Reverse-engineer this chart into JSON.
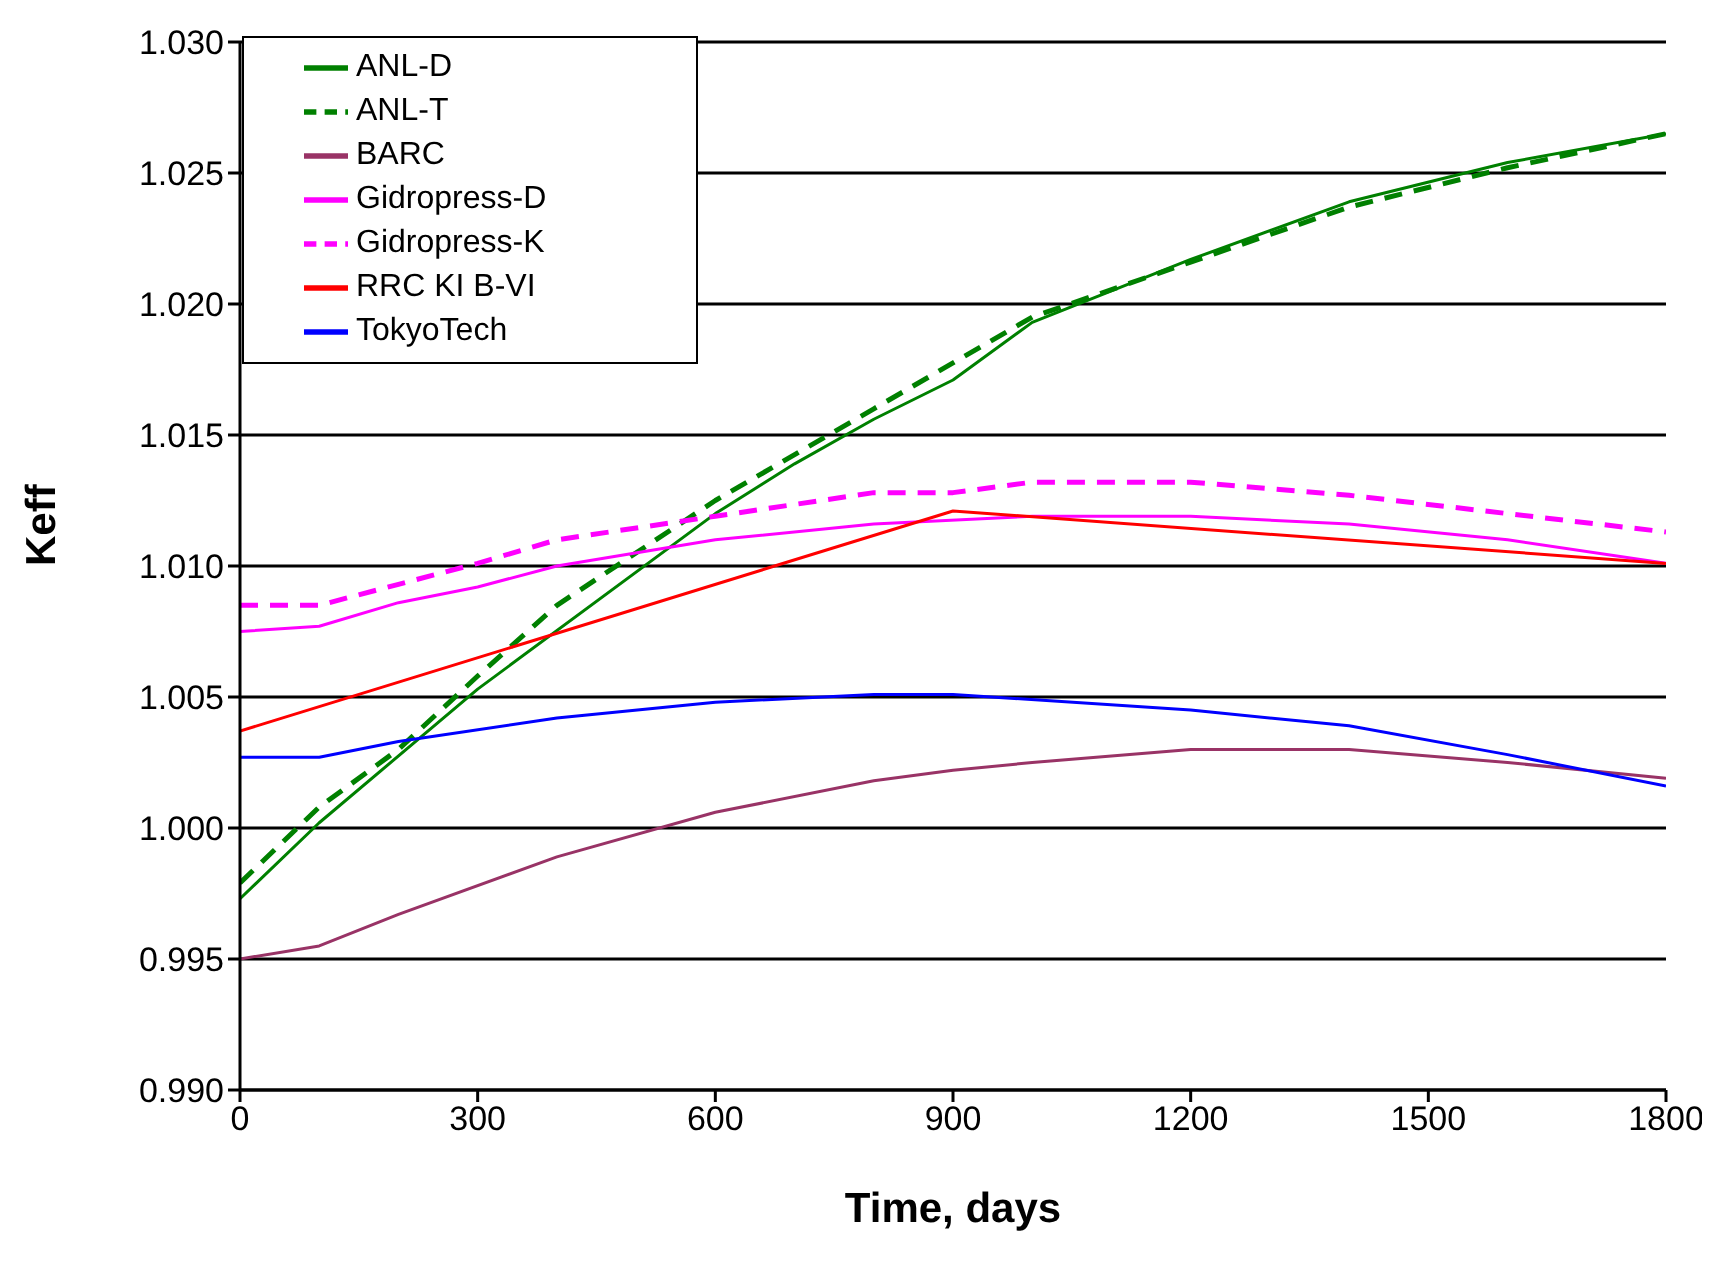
{
  "chart_data": {
    "type": "line",
    "xlabel": "Time, days",
    "ylabel": "Keff",
    "xlim": [
      0,
      1800
    ],
    "xticks": [
      0,
      300,
      600,
      900,
      1200,
      1500,
      1800
    ],
    "ylim": [
      0.99,
      1.03
    ],
    "yticks": [
      {
        "value": 0.99,
        "label": "0.990"
      },
      {
        "value": 0.995,
        "label": "0.995"
      },
      {
        "value": 1,
        "label": "1.000"
      },
      {
        "value": 1.005,
        "label": "1.005"
      },
      {
        "value": 1.01,
        "label": "1.010"
      },
      {
        "value": 1.015,
        "label": "1.015"
      },
      {
        "value": 1.02,
        "label": "1.020"
      },
      {
        "value": 1.025,
        "label": "1.025"
      },
      {
        "value": 1.03,
        "label": "1.030"
      }
    ],
    "grid": "y",
    "legend": "top left",
    "marker": "none",
    "series": [
      {
        "name": "ANL-D",
        "color": "#008000",
        "line_style": "solid",
        "x": [
          0,
          100,
          300,
          600,
          700,
          800,
          900,
          1000,
          1200,
          1400,
          1600,
          1800
        ],
        "values": [
          0.9973,
          1.0002,
          1.0053,
          1.012,
          1.0139,
          1.0156,
          1.0171,
          1.0193,
          1.0217,
          1.0239,
          1.0254,
          1.0265
        ]
      },
      {
        "name": "ANL-T",
        "color": "#008000",
        "line_style": "dashed",
        "x": [
          0,
          100,
          200,
          300,
          400,
          600,
          800,
          1000,
          1200,
          1400,
          1600,
          1800
        ],
        "values": [
          0.9979,
          1.0008,
          1.003,
          1.0058,
          1.0085,
          1.0125,
          1.016,
          1.0195,
          1.0216,
          1.0237,
          1.0252,
          1.0265
        ]
      },
      {
        "name": "BARC",
        "color": "#993366",
        "line_style": "solid",
        "x": [
          0,
          100,
          200,
          400,
          600,
          800,
          900,
          1000,
          1200,
          1400,
          1600,
          1800
        ],
        "values": [
          0.995,
          0.9955,
          0.9967,
          0.9989,
          1.0006,
          1.0018,
          1.0022,
          1.0025,
          1.003,
          1.003,
          1.0025,
          1.0019
        ]
      },
      {
        "name": "Gidropress-D",
        "color": "#ff00ff",
        "line_style": "solid",
        "x": [
          0,
          100,
          200,
          300,
          400,
          600,
          800,
          1000,
          1200,
          1400,
          1600,
          1800
        ],
        "values": [
          1.0075,
          1.0077,
          1.0086,
          1.0092,
          1.01,
          1.011,
          1.0116,
          1.0119,
          1.0119,
          1.0116,
          1.011,
          1.0101
        ]
      },
      {
        "name": "Gidropress-K",
        "color": "#ff00ff",
        "line_style": "dashed",
        "x": [
          0,
          100,
          200,
          300,
          400,
          600,
          800,
          900,
          1000,
          1200,
          1400,
          1800
        ],
        "values": [
          1.0085,
          1.0085,
          1.0093,
          1.0101,
          1.011,
          1.0119,
          1.0128,
          1.0128,
          1.0132,
          1.0132,
          1.0127,
          1.0113
        ]
      },
      {
        "name": "RRC KI B-VI",
        "color": "#ff0000",
        "line_style": "solid",
        "x": [
          0,
          900,
          1800
        ],
        "values": [
          1.0037,
          1.0121,
          1.0101
        ]
      },
      {
        "name": "TokyoTech",
        "color": "#0000ff",
        "line_style": "solid",
        "x": [
          0,
          100,
          200,
          400,
          600,
          800,
          900,
          1200,
          1400,
          1600,
          1800
        ],
        "values": [
          1.0027,
          1.0027,
          1.0033,
          1.0042,
          1.0048,
          1.0051,
          1.0051,
          1.0045,
          1.0039,
          1.0028,
          1.0016
        ]
      }
    ]
  }
}
